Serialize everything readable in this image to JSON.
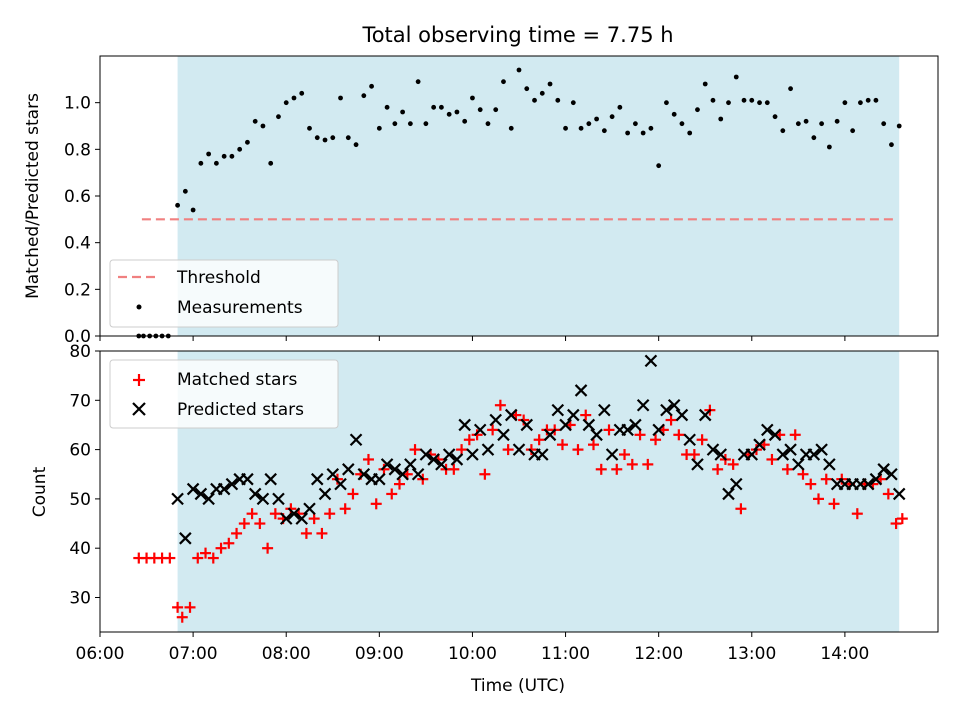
{
  "chart_data": [
    {
      "type": "scatter",
      "title": "Total observing time = 7.75 h",
      "ylabel": "Matched/Predicted stars",
      "xlabel": "",
      "xlim": [
        "06:00",
        "15:00"
      ],
      "ylim": [
        0,
        1.2
      ],
      "yticks": [
        0.0,
        0.2,
        0.4,
        0.6,
        0.8,
        1.0
      ],
      "yticklabels": [
        "0.0",
        "0.2",
        "0.4",
        "0.6",
        "0.8",
        "1.0"
      ],
      "shaded_span": [
        "06:50",
        "14:35"
      ],
      "shade_color": "#add8e6",
      "legend": {
        "location": "lower-left",
        "entries": [
          {
            "label": "Threshold",
            "style": "dashed-line",
            "color": "#f08080"
          },
          {
            "label": "Measurements",
            "style": "dot",
            "color": "#000000"
          }
        ]
      },
      "threshold": {
        "label": "Threshold",
        "value": 0.5,
        "x_range": [
          "06:27",
          "14:33"
        ],
        "color": "#f08080"
      },
      "series": [
        {
          "name": "Measurements",
          "marker": "dot",
          "color": "#000000",
          "x": [
            "06:25",
            "06:28",
            "06:32",
            "06:36",
            "06:40",
            "06:44",
            "06:50",
            "06:55",
            "07:00",
            "07:05",
            "07:10",
            "07:15",
            "07:20",
            "07:25",
            "07:30",
            "07:35",
            "07:40",
            "07:45",
            "07:50",
            "07:55",
            "08:00",
            "08:05",
            "08:10",
            "08:15",
            "08:20",
            "08:25",
            "08:30",
            "08:35",
            "08:40",
            "08:45",
            "08:50",
            "08:55",
            "09:00",
            "09:05",
            "09:10",
            "09:15",
            "09:20",
            "09:25",
            "09:30",
            "09:35",
            "09:40",
            "09:45",
            "09:50",
            "09:55",
            "10:00",
            "10:05",
            "10:10",
            "10:15",
            "10:20",
            "10:25",
            "10:30",
            "10:35",
            "10:40",
            "10:45",
            "10:50",
            "10:55",
            "11:00",
            "11:05",
            "11:10",
            "11:15",
            "11:20",
            "11:25",
            "11:30",
            "11:35",
            "11:40",
            "11:45",
            "11:50",
            "11:55",
            "12:00",
            "12:05",
            "12:10",
            "12:15",
            "12:20",
            "12:25",
            "12:30",
            "12:35",
            "12:40",
            "12:45",
            "12:50",
            "12:55",
            "13:00",
            "13:05",
            "13:10",
            "13:15",
            "13:20",
            "13:25",
            "13:30",
            "13:35",
            "13:40",
            "13:45",
            "13:50",
            "13:55",
            "14:00",
            "14:05",
            "14:10",
            "14:15",
            "14:20",
            "14:25",
            "14:30",
            "14:35"
          ],
          "y": [
            0.0,
            0.0,
            0.0,
            0.0,
            0.0,
            0.0,
            0.56,
            0.62,
            0.54,
            0.74,
            0.78,
            0.74,
            0.77,
            0.77,
            0.8,
            0.83,
            0.92,
            0.9,
            0.74,
            0.94,
            1.0,
            1.02,
            1.04,
            0.89,
            0.85,
            0.84,
            0.85,
            1.02,
            0.85,
            0.82,
            1.03,
            1.07,
            0.89,
            0.98,
            0.91,
            0.96,
            0.91,
            1.09,
            0.91,
            0.98,
            0.98,
            0.95,
            0.96,
            0.92,
            1.02,
            0.97,
            0.91,
            0.97,
            1.09,
            0.89,
            1.14,
            1.06,
            1.01,
            1.04,
            1.08,
            1.01,
            0.89,
            1.0,
            0.89,
            0.91,
            0.93,
            0.88,
            0.94,
            0.98,
            0.87,
            0.91,
            0.87,
            0.89,
            0.73,
            1.0,
            0.95,
            0.91,
            0.87,
            0.97,
            1.08,
            1.01,
            0.93,
            1.0,
            1.11,
            1.01,
            1.01,
            1.0,
            1.0,
            0.94,
            0.88,
            1.06,
            0.91,
            0.92,
            0.85,
            0.91,
            0.81,
            0.92,
            1.0,
            0.88,
            1.0,
            1.01,
            1.01,
            0.91,
            0.82,
            0.9
          ]
        }
      ]
    },
    {
      "type": "scatter",
      "title": "",
      "ylabel": "Count",
      "xlabel": "Time (UTC)",
      "xlim": [
        "06:00",
        "15:00"
      ],
      "ylim": [
        23,
        80
      ],
      "xticks": [
        "06:00",
        "07:00",
        "08:00",
        "09:00",
        "10:00",
        "11:00",
        "12:00",
        "13:00",
        "14:00"
      ],
      "yticks": [
        30,
        40,
        50,
        60,
        70,
        80
      ],
      "shaded_span": [
        "06:50",
        "14:35"
      ],
      "shade_color": "#add8e6",
      "legend": {
        "location": "upper-left",
        "entries": [
          {
            "label": "Matched stars",
            "style": "plus",
            "color": "#ff0000"
          },
          {
            "label": "Predicted stars",
            "style": "x",
            "color": "#000000"
          }
        ]
      },
      "series": [
        {
          "name": "Matched stars",
          "marker": "plus",
          "color": "#ff0000",
          "x": [
            "06:25",
            "06:30",
            "06:35",
            "06:40",
            "06:45",
            "06:50",
            "06:53",
            "06:58",
            "07:03",
            "07:08",
            "07:13",
            "07:18",
            "07:23",
            "07:28",
            "07:33",
            "07:38",
            "07:43",
            "07:48",
            "07:53",
            "07:58",
            "08:03",
            "08:08",
            "08:13",
            "08:18",
            "08:23",
            "08:28",
            "08:33",
            "08:38",
            "08:43",
            "08:48",
            "08:53",
            "08:58",
            "09:03",
            "09:08",
            "09:13",
            "09:18",
            "09:23",
            "09:28",
            "09:33",
            "09:38",
            "09:43",
            "09:48",
            "09:53",
            "09:58",
            "10:03",
            "10:08",
            "10:13",
            "10:18",
            "10:23",
            "10:28",
            "10:33",
            "10:38",
            "10:43",
            "10:48",
            "10:53",
            "10:58",
            "11:03",
            "11:08",
            "11:13",
            "11:18",
            "11:23",
            "11:28",
            "11:33",
            "11:38",
            "11:43",
            "11:48",
            "11:53",
            "11:58",
            "12:03",
            "12:08",
            "12:13",
            "12:18",
            "12:23",
            "12:28",
            "12:33",
            "12:38",
            "12:43",
            "12:48",
            "12:53",
            "12:58",
            "13:03",
            "13:08",
            "13:13",
            "13:18",
            "13:23",
            "13:28",
            "13:33",
            "13:38",
            "13:43",
            "13:48",
            "13:53",
            "13:58",
            "14:03",
            "14:08",
            "14:13",
            "14:18",
            "14:23",
            "14:28",
            "14:33",
            "14:37"
          ],
          "y": [
            38,
            38,
            38,
            38,
            38,
            28,
            26,
            28,
            38,
            39,
            38,
            40,
            41,
            43,
            45,
            47,
            45,
            40,
            47,
            46,
            48,
            47,
            43,
            46,
            43,
            47,
            54,
            48,
            51,
            55,
            58,
            49,
            56,
            51,
            53,
            55,
            60,
            54,
            59,
            58,
            56,
            56,
            60,
            62,
            63,
            55,
            64,
            69,
            60,
            67,
            66,
            60,
            62,
            64,
            64,
            61,
            65,
            60,
            67,
            61,
            56,
            64,
            56,
            59,
            57,
            63,
            57,
            62,
            64,
            66,
            63,
            59,
            59,
            62,
            68,
            56,
            58,
            57,
            48,
            59,
            60,
            61,
            58,
            63,
            56,
            63,
            55,
            53,
            50,
            54,
            49,
            54,
            53,
            47,
            53,
            53,
            54,
            51,
            45,
            46
          ]
        },
        {
          "name": "Predicted stars",
          "marker": "x",
          "color": "#000000",
          "x": [
            "06:50",
            "06:55",
            "07:00",
            "07:05",
            "07:10",
            "07:15",
            "07:20",
            "07:25",
            "07:30",
            "07:35",
            "07:40",
            "07:45",
            "07:50",
            "07:55",
            "08:00",
            "08:05",
            "08:10",
            "08:15",
            "08:20",
            "08:25",
            "08:30",
            "08:35",
            "08:40",
            "08:45",
            "08:50",
            "08:55",
            "09:00",
            "09:05",
            "09:10",
            "09:15",
            "09:20",
            "09:25",
            "09:30",
            "09:35",
            "09:40",
            "09:45",
            "09:50",
            "09:55",
            "10:00",
            "10:05",
            "10:10",
            "10:15",
            "10:20",
            "10:25",
            "10:30",
            "10:35",
            "10:40",
            "10:45",
            "10:50",
            "10:55",
            "11:00",
            "11:05",
            "11:10",
            "11:15",
            "11:20",
            "11:25",
            "11:30",
            "11:35",
            "11:40",
            "11:45",
            "11:50",
            "11:55",
            "12:00",
            "12:05",
            "12:10",
            "12:15",
            "12:20",
            "12:25",
            "12:30",
            "12:35",
            "12:40",
            "12:45",
            "12:50",
            "12:55",
            "13:00",
            "13:05",
            "13:10",
            "13:15",
            "13:20",
            "13:25",
            "13:30",
            "13:35",
            "13:40",
            "13:45",
            "13:50",
            "13:55",
            "14:00",
            "14:05",
            "14:10",
            "14:15",
            "14:20",
            "14:25",
            "14:30",
            "14:35"
          ],
          "y": [
            50,
            42,
            52,
            51,
            50,
            52,
            52,
            53,
            54,
            54,
            51,
            50,
            54,
            50,
            46,
            47,
            46,
            48,
            54,
            51,
            55,
            53,
            56,
            62,
            55,
            54,
            54,
            57,
            56,
            55,
            57,
            55,
            59,
            58,
            57,
            59,
            58,
            65,
            59,
            64,
            60,
            66,
            63,
            67,
            60,
            65,
            59,
            59,
            63,
            68,
            65,
            67,
            72,
            65,
            63,
            68,
            59,
            64,
            64,
            65,
            69,
            78,
            64,
            68,
            69,
            67,
            62,
            57,
            67,
            60,
            59,
            51,
            53,
            59,
            59,
            61,
            64,
            63,
            59,
            60,
            57,
            59,
            59,
            60,
            57,
            53,
            53,
            53,
            53,
            53,
            54,
            56,
            55,
            51
          ]
        }
      ]
    }
  ]
}
